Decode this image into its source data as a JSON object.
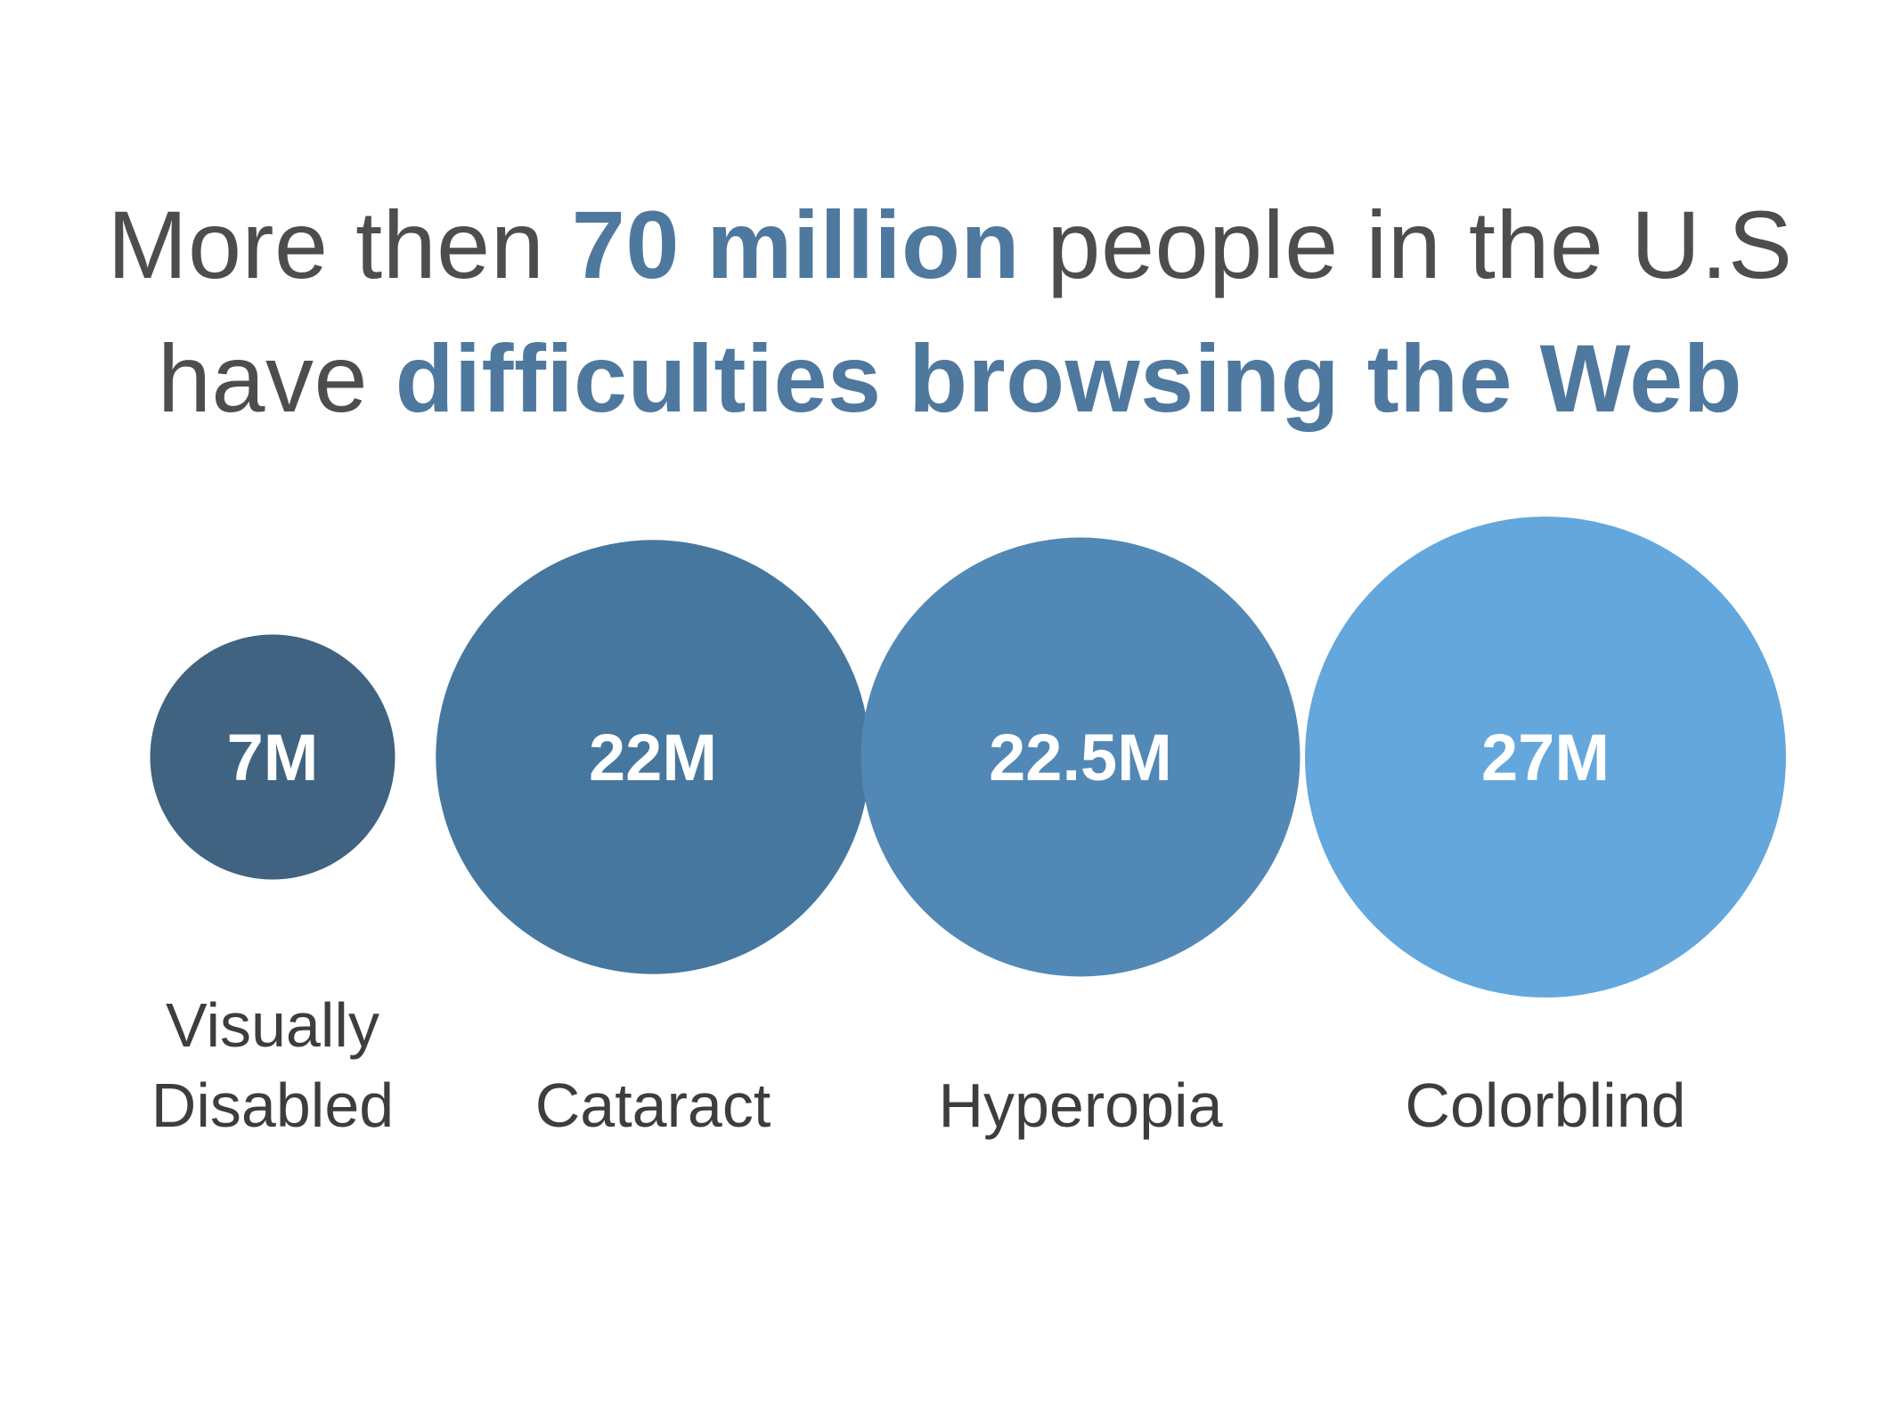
{
  "headline": {
    "line1_pre": "More then ",
    "line1_em": "70 million",
    "line1_post": " people in the U.S",
    "line2_pre": "have ",
    "line2_em": "difficulties browsing the Web"
  },
  "chart_data": {
    "type": "bubble",
    "title": "More then 70 million people in the U.S have difficulties browsing the Web",
    "categories": [
      {
        "label_lines": [
          "Visually",
          "Disabled"
        ],
        "value": 7,
        "display": "7M",
        "color": "#3f6380"
      },
      {
        "label_lines": [
          "Cataract"
        ],
        "value": 22,
        "display": "22M",
        "color": "#46779f"
      },
      {
        "label_lines": [
          "Hyperopia"
        ],
        "value": 22.5,
        "display": "22.5M",
        "color": "#5288b6"
      },
      {
        "label_lines": [
          "Colorblind"
        ],
        "value": 27,
        "display": "27M",
        "color": "#64a7dc"
      }
    ],
    "unit": "M",
    "accent_color": "#4f789f",
    "text_color": "#4d4d4d"
  }
}
